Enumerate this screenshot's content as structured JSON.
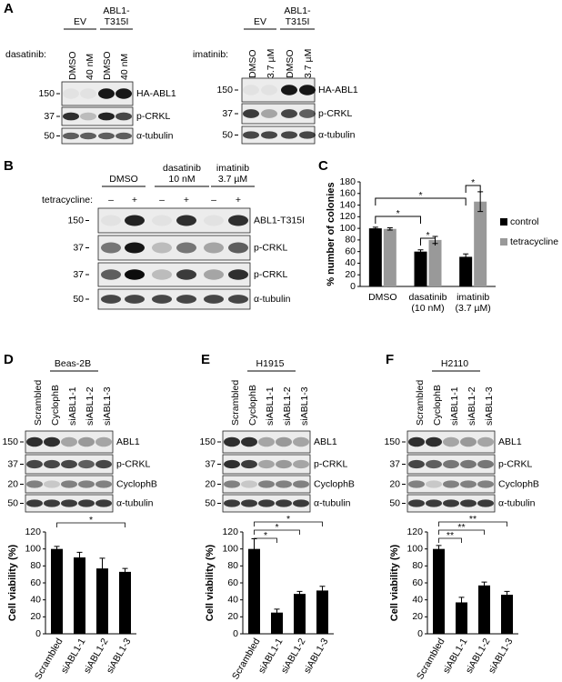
{
  "panel_labels": [
    "A",
    "B",
    "C",
    "D",
    "E",
    "F"
  ],
  "blots": {
    "a_left": {
      "treatment": "dasatinib:",
      "groups": [
        [
          "EV"
        ],
        [
          "ABL1-",
          "T315I"
        ]
      ],
      "lanes": [
        "DMSO",
        "40 nM",
        "DMSO",
        "40 nM"
      ],
      "rows": [
        {
          "mw": "150",
          "protein": "HA-ABL1"
        },
        {
          "mw": "37",
          "protein": "p-CRKL"
        },
        {
          "mw": "50",
          "protein": "α-tubulin"
        }
      ]
    },
    "a_right": {
      "treatment": "imatinib:",
      "groups": [
        [
          "EV"
        ],
        [
          "ABL1-",
          "T315I"
        ]
      ],
      "lanes": [
        "DMSO",
        "3.7 µM",
        "DMSO",
        "3.7 µM"
      ],
      "rows": [
        {
          "mw": "150",
          "protein": "HA-ABL1"
        },
        {
          "mw": "37",
          "protein": "p-CRKL"
        },
        {
          "mw": "50",
          "protein": "α-tubulin"
        }
      ]
    },
    "b": {
      "treatment": "tetracycline:",
      "groups": [
        [
          "DMSO"
        ],
        [
          "dasatinib",
          "10 nM"
        ],
        [
          "imatinib",
          "3.7 µM"
        ]
      ],
      "lanes": [
        "–",
        "+",
        "–",
        "+",
        "–",
        "+"
      ],
      "rows": [
        {
          "mw": "150",
          "protein": "ABL1-T315I"
        },
        {
          "mw": "37",
          "protein": "p-CRKL"
        },
        {
          "mw": "37",
          "protein": "p-CRKL"
        },
        {
          "mw": "50",
          "protein": "α-tubulin"
        }
      ]
    },
    "d": {
      "cell_line": "Beas-2B",
      "lanes": [
        "Scrambled",
        "CyclophB",
        "siABL1-1",
        "siABL1-2",
        "siABL1-3"
      ],
      "rows": [
        {
          "mw": "150",
          "protein": "ABL1"
        },
        {
          "mw": "37",
          "protein": "p-CRKL"
        },
        {
          "mw": "20",
          "protein": "CyclophB"
        },
        {
          "mw": "50",
          "protein": "α-tubulin"
        }
      ]
    },
    "e": {
      "cell_line": "H1915",
      "lanes": [
        "Scrambled",
        "CyclophB",
        "siABL1-1",
        "siABL1-2",
        "siABL1-3"
      ],
      "rows": [
        {
          "mw": "150",
          "protein": "ABL1"
        },
        {
          "mw": "37",
          "protein": "p-CRKL"
        },
        {
          "mw": "20",
          "protein": "CyclophB"
        },
        {
          "mw": "50",
          "protein": "α-tubulin"
        }
      ]
    },
    "f": {
      "cell_line": "H2110",
      "lanes": [
        "Scrambled",
        "CyclophB",
        "siABL1-1",
        "siABL1-2",
        "siABL1-3"
      ],
      "rows": [
        {
          "mw": "150",
          "protein": "ABL1"
        },
        {
          "mw": "37",
          "protein": "p-CRKL"
        },
        {
          "mw": "20",
          "protein": "CyclophB"
        },
        {
          "mw": "50",
          "protein": "α-tubulin"
        }
      ]
    }
  },
  "chart_data": [
    {
      "type": "grouped-bar",
      "ylabel": "% number of colonies",
      "categories": [
        [
          "DMSO"
        ],
        [
          "dasatinib",
          "(10 nM)"
        ],
        [
          "imatinib",
          "(3.7 µM)"
        ]
      ],
      "series": [
        {
          "name": "control",
          "color": "#000000",
          "values": [
            100,
            60,
            51
          ],
          "errors": [
            2,
            3,
            5
          ]
        },
        {
          "name": "tetracycline",
          "color": "#999999",
          "values": [
            99,
            80,
            146
          ],
          "errors": [
            2,
            6,
            17
          ]
        }
      ],
      "ylim": [
        0,
        180
      ],
      "yticks": [
        0,
        20,
        40,
        60,
        80,
        100,
        120,
        140,
        160,
        180
      ],
      "annotations": [
        "*",
        "*",
        "*",
        "*"
      ],
      "legend": "right"
    },
    {
      "type": "bar",
      "ylabel": "Cell viability (%)",
      "categories": [
        "Scrambled",
        "siABL1-1",
        "siABL1-2",
        "siABL1-3"
      ],
      "values": [
        100,
        90,
        77,
        73
      ],
      "errors": [
        3,
        6,
        12,
        4
      ],
      "color": "#000000",
      "ylim": [
        0,
        120
      ],
      "yticks": [
        0,
        20,
        40,
        60,
        80,
        100,
        120
      ],
      "annotations": [
        "*"
      ]
    },
    {
      "type": "bar",
      "ylabel": "Cell viability (%)",
      "categories": [
        "Scrambled",
        "siABL1-1",
        "siABL1-2",
        "siABL1-3"
      ],
      "values": [
        100,
        25,
        47,
        51
      ],
      "errors": [
        12,
        4,
        3,
        5
      ],
      "color": "#000000",
      "ylim": [
        0,
        120
      ],
      "yticks": [
        0,
        20,
        40,
        60,
        80,
        100,
        120
      ],
      "annotations": [
        "*",
        "*",
        "*"
      ]
    },
    {
      "type": "bar",
      "ylabel": "Cell viability (%)",
      "categories": [
        "Scrambled",
        "siABL1-1",
        "siABL1-2",
        "siABL1-3"
      ],
      "values": [
        100,
        37,
        57,
        46
      ],
      "errors": [
        4,
        6,
        4,
        4
      ],
      "color": "#000000",
      "ylim": [
        0,
        120
      ],
      "yticks": [
        0,
        20,
        40,
        60,
        80,
        100,
        120
      ],
      "annotations": [
        "**",
        "**",
        "**"
      ]
    }
  ]
}
